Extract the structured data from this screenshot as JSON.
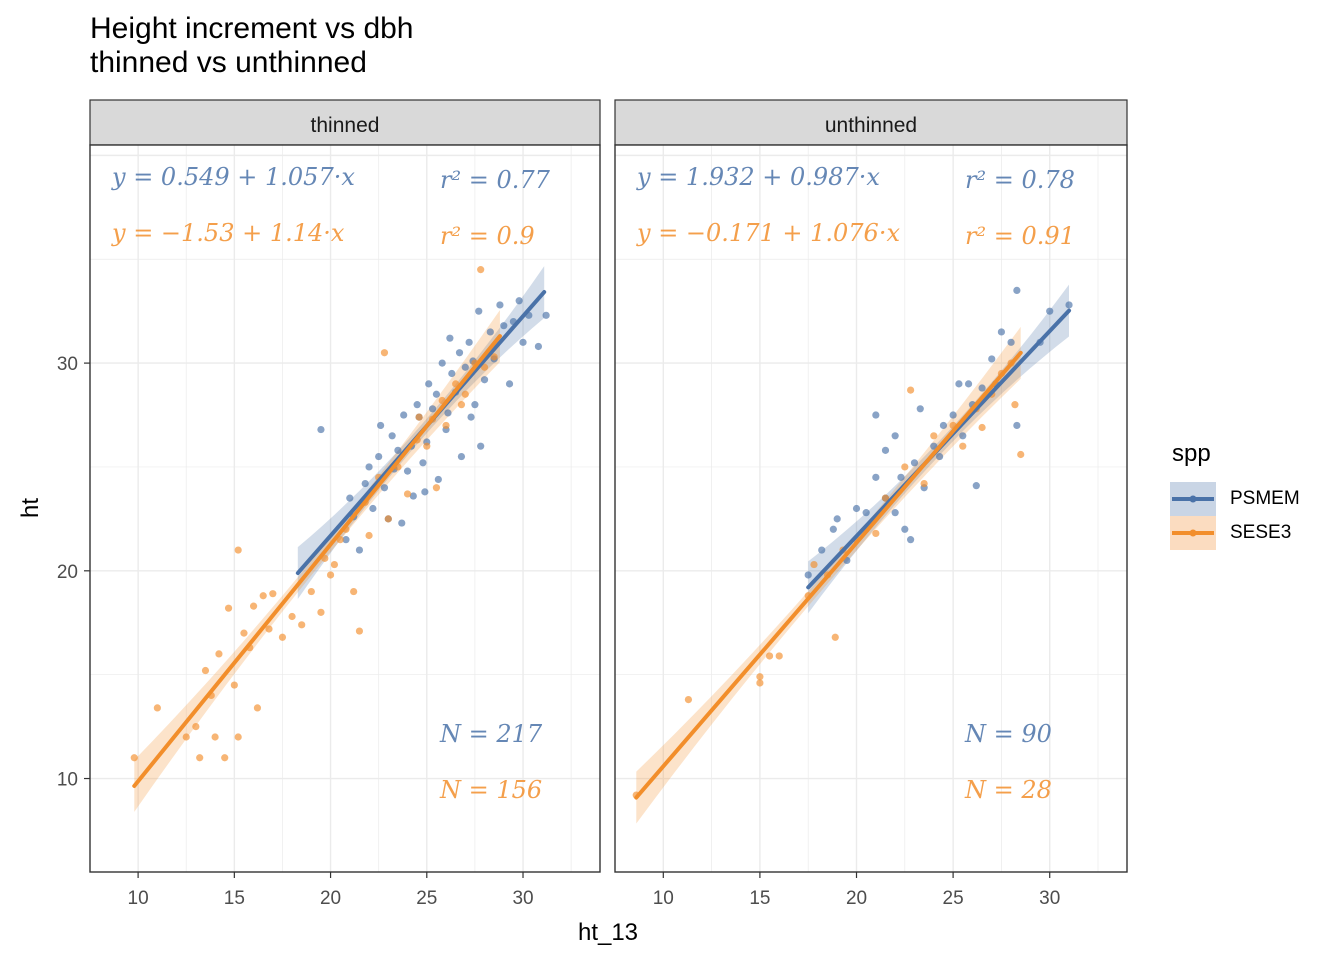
{
  "title_lines": [
    "Height increment vs dbh",
    "thinned vs unthinned"
  ],
  "legend": {
    "title": "spp",
    "items": [
      {
        "label": "PSMEM",
        "color": "#4a72a8"
      },
      {
        "label": "SESE3",
        "color": "#f28e2b"
      }
    ]
  },
  "chart_data": {
    "type": "scatter",
    "xlabel": "ht_13",
    "ylabel": "ht",
    "xlim": [
      7.5,
      34
    ],
    "ylim": [
      5.5,
      40.5
    ],
    "x_ticks": [
      10,
      15,
      20,
      25,
      30
    ],
    "y_ticks": [
      10,
      20,
      30
    ],
    "grid": true,
    "legend_position": "right",
    "panels": [
      {
        "label": "thinned",
        "series": [
          {
            "name": "PSMEM",
            "color": "#4a72a8",
            "fit": {
              "intercept": 0.549,
              "slope": 1.057,
              "x_range": [
                18.3,
                31.1
              ]
            },
            "equation": "y = 0.549 + 1.057·x",
            "r2_label": "r² = 0.77",
            "n_label": "N = 217",
            "points": [
              [
                19.5,
                26.8
              ],
              [
                20.8,
                21.5
              ],
              [
                21.0,
                23.5
              ],
              [
                21.2,
                22.6
              ],
              [
                21.5,
                21.0
              ],
              [
                21.8,
                24.2
              ],
              [
                22.0,
                25.0
              ],
              [
                22.2,
                23.0
              ],
              [
                22.5,
                25.5
              ],
              [
                22.8,
                24.0
              ],
              [
                23.0,
                22.5
              ],
              [
                23.2,
                26.5
              ],
              [
                23.5,
                25.8
              ],
              [
                23.7,
                22.3
              ],
              [
                23.8,
                27.5
              ],
              [
                24.0,
                24.8
              ],
              [
                24.2,
                26.0
              ],
              [
                24.3,
                23.6
              ],
              [
                24.5,
                28.0
              ],
              [
                24.6,
                27.4
              ],
              [
                24.8,
                25.2
              ],
              [
                25.0,
                26.2
              ],
              [
                25.1,
                29.0
              ],
              [
                25.3,
                27.8
              ],
              [
                25.5,
                28.5
              ],
              [
                25.6,
                24.4
              ],
              [
                25.8,
                30.0
              ],
              [
                26.0,
                26.8
              ],
              [
                26.1,
                27.6
              ],
              [
                26.3,
                29.5
              ],
              [
                26.5,
                28.6
              ],
              [
                26.7,
                30.5
              ],
              [
                26.8,
                25.5
              ],
              [
                27.0,
                29.8
              ],
              [
                27.2,
                31.0
              ],
              [
                27.4,
                30.1
              ],
              [
                27.5,
                28.0
              ],
              [
                27.7,
                32.5
              ],
              [
                27.8,
                26.0
              ],
              [
                28.0,
                29.2
              ],
              [
                28.3,
                31.5
              ],
              [
                28.5,
                30.2
              ],
              [
                28.8,
                32.8
              ],
              [
                29.0,
                31.8
              ],
              [
                29.3,
                29.0
              ],
              [
                29.5,
                32.0
              ],
              [
                29.8,
                33.0
              ],
              [
                30.0,
                31.0
              ],
              [
                30.3,
                32.3
              ],
              [
                30.8,
                30.8
              ],
              [
                31.2,
                32.3
              ],
              [
                22.6,
                27.0
              ],
              [
                23.3,
                24.9
              ],
              [
                24.9,
                23.8
              ],
              [
                26.2,
                31.2
              ],
              [
                27.3,
                27.4
              ]
            ]
          },
          {
            "name": "SESE3",
            "color": "#f28e2b",
            "fit": {
              "intercept": -1.53,
              "slope": 1.14,
              "x_range": [
                9.8,
                28.8
              ]
            },
            "equation": "y = −1.53 + 1.14·x",
            "r2_label": "r² = 0.9",
            "n_label": "N = 156",
            "points": [
              [
                9.8,
                11.0
              ],
              [
                11.0,
                13.4
              ],
              [
                12.5,
                12.0
              ],
              [
                13.0,
                12.5
              ],
              [
                13.2,
                11.0
              ],
              [
                13.5,
                15.2
              ],
              [
                13.8,
                14.0
              ],
              [
                14.0,
                12.0
              ],
              [
                14.2,
                16.0
              ],
              [
                14.5,
                11.0
              ],
              [
                14.7,
                18.2
              ],
              [
                15.0,
                14.5
              ],
              [
                15.2,
                21.0
              ],
              [
                15.2,
                12.0
              ],
              [
                15.5,
                17.0
              ],
              [
                15.8,
                16.3
              ],
              [
                16.0,
                18.3
              ],
              [
                16.2,
                13.4
              ],
              [
                16.5,
                18.8
              ],
              [
                16.8,
                17.2
              ],
              [
                17.0,
                18.9
              ],
              [
                17.5,
                16.8
              ],
              [
                18.0,
                17.8
              ],
              [
                18.5,
                17.4
              ],
              [
                19.0,
                19.0
              ],
              [
                19.5,
                18.0
              ],
              [
                19.7,
                20.6
              ],
              [
                20.0,
                19.8
              ],
              [
                20.2,
                20.3
              ],
              [
                20.5,
                21.5
              ],
              [
                20.8,
                22.0
              ],
              [
                21.2,
                19.0
              ],
              [
                21.5,
                17.1
              ],
              [
                21.8,
                23.3
              ],
              [
                22.0,
                21.7
              ],
              [
                22.5,
                24.5
              ],
              [
                22.8,
                30.5
              ],
              [
                23.0,
                22.5
              ],
              [
                23.5,
                25.0
              ],
              [
                24.0,
                23.7
              ],
              [
                24.5,
                26.3
              ],
              [
                25.0,
                26.0
              ],
              [
                25.3,
                27.3
              ],
              [
                25.5,
                24.0
              ],
              [
                25.8,
                28.2
              ],
              [
                26.0,
                27.0
              ],
              [
                26.5,
                29.0
              ],
              [
                27.0,
                28.5
              ],
              [
                27.5,
                30.0
              ],
              [
                27.8,
                34.5
              ],
              [
                28.0,
                29.8
              ],
              [
                28.5,
                30.3
              ],
              [
                26.8,
                28.0
              ],
              [
                24.6,
                27.4
              ]
            ]
          }
        ]
      },
      {
        "label": "unthinned",
        "series": [
          {
            "name": "PSMEM",
            "color": "#4a72a8",
            "fit": {
              "intercept": 1.932,
              "slope": 0.987,
              "x_range": [
                17.5,
                31.0
              ]
            },
            "equation": "y = 1.932 + 0.987·x",
            "r2_label": "r² = 0.78",
            "n_label": "N = 90",
            "points": [
              [
                17.5,
                19.8
              ],
              [
                18.2,
                21.0
              ],
              [
                18.8,
                22.0
              ],
              [
                19.0,
                22.5
              ],
              [
                19.5,
                20.5
              ],
              [
                20.0,
                23.0
              ],
              [
                20.5,
                22.8
              ],
              [
                21.0,
                24.5
              ],
              [
                21.0,
                27.5
              ],
              [
                21.5,
                23.5
              ],
              [
                22.0,
                26.5
              ],
              [
                22.3,
                24.5
              ],
              [
                22.5,
                22.0
              ],
              [
                22.8,
                21.5
              ],
              [
                23.0,
                25.2
              ],
              [
                23.3,
                27.8
              ],
              [
                23.5,
                24.0
              ],
              [
                24.0,
                26.0
              ],
              [
                24.3,
                25.5
              ],
              [
                24.5,
                27.0
              ],
              [
                25.0,
                27.5
              ],
              [
                25.5,
                26.5
              ],
              [
                25.8,
                29.0
              ],
              [
                26.0,
                28.0
              ],
              [
                26.2,
                24.1
              ],
              [
                26.5,
                28.8
              ],
              [
                27.0,
                30.2
              ],
              [
                27.2,
                29.0
              ],
              [
                27.5,
                31.5
              ],
              [
                28.0,
                31.0
              ],
              [
                28.3,
                33.5
              ],
              [
                28.3,
                27.0
              ],
              [
                29.5,
                31.0
              ],
              [
                30.0,
                32.5
              ],
              [
                31.0,
                32.8
              ],
              [
                21.5,
                25.8
              ],
              [
                22.0,
                22.8
              ],
              [
                25.3,
                29.0
              ]
            ]
          },
          {
            "name": "SESE3",
            "color": "#f28e2b",
            "fit": {
              "intercept": -0.171,
              "slope": 1.076,
              "x_range": [
                8.6,
                28.5
              ]
            },
            "equation": "y = −0.171 + 1.076·x",
            "r2_label": "r² = 0.91",
            "n_label": "N = 28",
            "points": [
              [
                8.6,
                9.2
              ],
              [
                11.3,
                13.8
              ],
              [
                15.0,
                14.9
              ],
              [
                15.0,
                14.6
              ],
              [
                15.5,
                15.9
              ],
              [
                16.0,
                15.9
              ],
              [
                17.5,
                18.8
              ],
              [
                17.8,
                20.3
              ],
              [
                18.5,
                19.8
              ],
              [
                18.9,
                16.8
              ],
              [
                19.3,
                21.0
              ],
              [
                20.0,
                21.5
              ],
              [
                20.5,
                22.0
              ],
              [
                21.5,
                23.5
              ],
              [
                22.5,
                25.0
              ],
              [
                22.8,
                28.7
              ],
              [
                24.0,
                26.5
              ],
              [
                25.0,
                27.0
              ],
              [
                25.5,
                26.0
              ],
              [
                26.2,
                27.8
              ],
              [
                27.0,
                28.5
              ],
              [
                28.0,
                30.0
              ],
              [
                28.5,
                25.6
              ],
              [
                27.5,
                29.5
              ],
              [
                23.5,
                24.2
              ],
              [
                21.0,
                21.8
              ],
              [
                26.5,
                26.9
              ],
              [
                28.2,
                28.0
              ]
            ]
          }
        ]
      }
    ]
  }
}
